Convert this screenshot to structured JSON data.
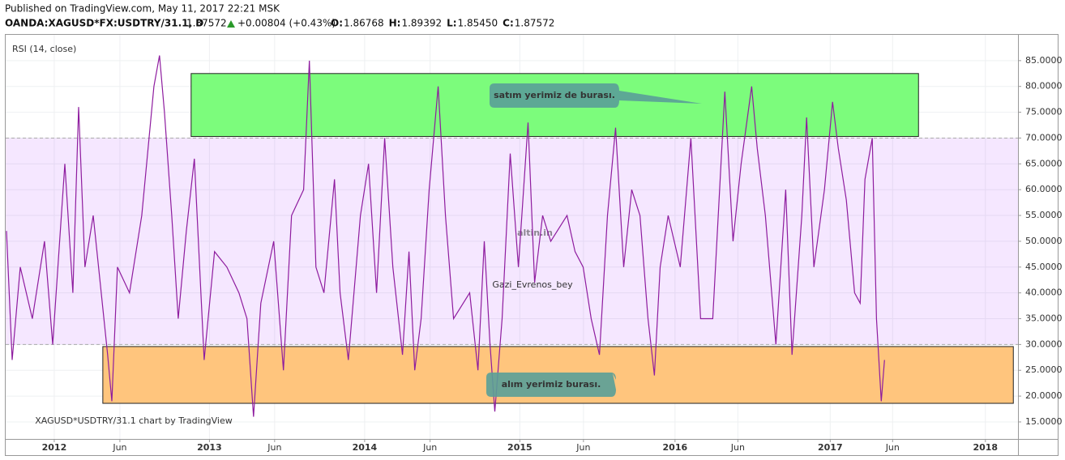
{
  "header": {
    "published": "Published on TradingView.com, May 11, 2017 22:21 MSK",
    "symbol": "OANDA:XAGUSD*FX:USDTRY/31.1, D",
    "last": "1.87572",
    "change": "+0.00804 (+0.43%)",
    "ohlc": [
      {
        "label": "O:",
        "value": "1.86768"
      },
      {
        "label": "H:",
        "value": "1.89392"
      },
      {
        "label": "L:",
        "value": "1.85450"
      },
      {
        "label": "C:",
        "value": "1.87572"
      }
    ]
  },
  "chart_data": {
    "type": "line",
    "series": [
      {
        "name": "RSI (14, close)",
        "color": "#8e1c9f",
        "x": [
          2011.692,
          2011.729,
          2011.781,
          2011.859,
          2011.937,
          2011.99,
          2012.068,
          2012.12,
          2012.157,
          2012.198,
          2012.251,
          2012.303,
          2012.344,
          2012.371,
          2012.407,
          2012.485,
          2012.564,
          2012.642,
          2012.678,
          2012.71,
          2012.757,
          2012.799,
          2012.851,
          2012.903,
          2012.966,
          2013.033,
          2013.112,
          2013.19,
          2013.242,
          2013.284,
          2013.331,
          2013.414,
          2013.477,
          2013.529,
          2013.607,
          2013.644,
          2013.686,
          2013.738,
          2013.806,
          2013.842,
          2013.895,
          2013.973,
          2014.025,
          2014.077,
          2014.129,
          2014.182,
          2014.244,
          2014.286,
          2014.323,
          2014.364,
          2014.416,
          2014.474,
          2014.521,
          2014.573,
          2014.677,
          2014.73,
          2014.771,
          2014.808,
          2014.839,
          2014.886,
          2014.938,
          2014.991,
          2015.053,
          2015.095,
          2015.147,
          2015.199,
          2015.304,
          2015.356,
          2015.408,
          2015.46,
          2015.513,
          2015.565,
          2015.617,
          2015.669,
          2015.721,
          2015.774,
          2015.826,
          2015.867,
          2015.904,
          2015.956,
          2016.034,
          2016.102,
          2016.165,
          2016.243,
          2016.321,
          2016.374,
          2016.426,
          2016.494,
          2016.53,
          2016.582,
          2016.65,
          2016.713,
          2016.754,
          2016.817,
          2016.848,
          2016.895,
          2016.963,
          2017.015,
          2017.052,
          2017.104,
          2017.157,
          2017.193,
          2017.224,
          2017.271,
          2017.298,
          2017.329,
          2017.35
        ],
        "values": [
          52,
          27,
          45,
          35,
          50,
          30,
          65,
          40,
          76,
          45,
          55,
          40,
          28,
          19,
          45,
          40,
          55,
          80,
          86,
          75,
          55,
          35,
          52,
          66,
          27,
          48,
          45,
          40,
          35,
          16,
          38,
          50,
          25,
          55,
          60,
          85,
          45,
          40,
          62,
          40,
          27,
          55,
          65,
          40,
          70,
          45,
          28,
          48,
          25,
          35,
          60,
          80,
          55,
          35,
          40,
          25,
          50,
          30,
          17,
          35,
          67,
          45,
          73,
          42,
          55,
          50,
          55,
          48,
          45,
          35,
          28,
          55,
          72,
          45,
          60,
          55,
          35,
          24,
          45,
          55,
          45,
          70,
          35,
          35,
          79,
          50,
          65,
          80,
          68,
          55,
          30,
          60,
          28,
          55,
          74,
          45,
          60,
          77,
          68,
          58,
          40,
          38,
          62,
          70,
          35,
          19,
          27
        ]
      }
    ],
    "xlim": [
      2011.687,
      2018.21
    ],
    "xticks": [
      {
        "value": 2012,
        "label": "2012"
      },
      {
        "value": 2012.423,
        "label": "Jun"
      },
      {
        "value": 2013,
        "label": "2013"
      },
      {
        "value": 2013.42,
        "label": "Jun"
      },
      {
        "value": 2014,
        "label": "2014"
      },
      {
        "value": 2014.422,
        "label": "Jun"
      },
      {
        "value": 2015,
        "label": "2015"
      },
      {
        "value": 2015.41,
        "label": "Jun"
      },
      {
        "value": 2016,
        "label": "2016"
      },
      {
        "value": 2016.405,
        "label": "Jun"
      },
      {
        "value": 2017,
        "label": "2017"
      },
      {
        "value": 2017.402,
        "label": "Jun"
      },
      {
        "value": 2018,
        "label": "2018"
      }
    ],
    "ylim": [
      11.7,
      90
    ],
    "yticks": [
      {
        "value": 15,
        "label": "15.0000"
      },
      {
        "value": 20,
        "label": "20.0000"
      },
      {
        "value": 25,
        "label": "25.0000"
      },
      {
        "value": 30,
        "label": "30.0000"
      },
      {
        "value": 35,
        "label": "35.0000"
      },
      {
        "value": 40,
        "label": "40.0000"
      },
      {
        "value": 45,
        "label": "45.0000"
      },
      {
        "value": 50,
        "label": "50.0000"
      },
      {
        "value": 55,
        "label": "55.0000"
      },
      {
        "value": 60,
        "label": "60.0000"
      },
      {
        "value": 65,
        "label": "65.0000"
      },
      {
        "value": 70,
        "label": "70.0000"
      },
      {
        "value": 75,
        "label": "75.0000"
      },
      {
        "value": 80,
        "label": "80.0000"
      },
      {
        "value": 85,
        "label": "85.0000"
      }
    ],
    "band": [
      30,
      70
    ],
    "grid": true,
    "zones": [
      {
        "color": "#7cfc7c",
        "x": [
          2012.882,
          2017.569
        ],
        "y": [
          70.3,
          82.5
        ],
        "note": "satım yerimiz de burası."
      },
      {
        "color": "#ffc57d",
        "x": [
          2012.313,
          2018.18
        ],
        "y": [
          18.6,
          29.6
        ],
        "note": "alım yerimiz burası."
      }
    ],
    "watermark": "altin.in",
    "author": "Gazi_Evrenos_bey",
    "credit": "XAGUSD*USDTRY/31.1 chart by TradingView"
  }
}
